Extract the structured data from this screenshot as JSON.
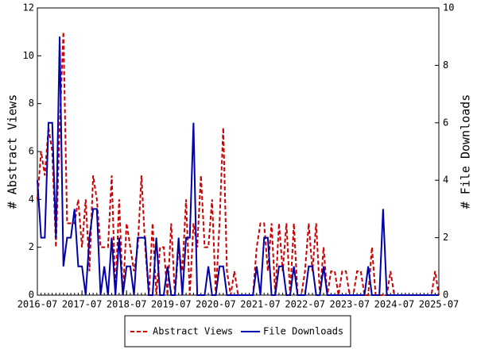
{
  "chart_data": {
    "type": "line",
    "x": [
      "2016-07",
      "2016-08",
      "2016-09",
      "2016-10",
      "2016-11",
      "2016-12",
      "2017-01",
      "2017-02",
      "2017-03",
      "2017-04",
      "2017-05",
      "2017-06",
      "2017-07",
      "2017-08",
      "2017-09",
      "2017-10",
      "2017-11",
      "2017-12",
      "2018-01",
      "2018-02",
      "2018-03",
      "2018-04",
      "2018-05",
      "2018-06",
      "2018-07",
      "2018-08",
      "2018-09",
      "2018-10",
      "2018-11",
      "2018-12",
      "2019-01",
      "2019-02",
      "2019-03",
      "2019-04",
      "2019-05",
      "2019-06",
      "2019-07",
      "2019-08",
      "2019-09",
      "2019-10",
      "2019-11",
      "2019-12",
      "2020-01",
      "2020-02",
      "2020-03",
      "2020-04",
      "2020-05",
      "2020-06",
      "2020-07",
      "2020-08",
      "2020-09",
      "2020-10",
      "2020-11",
      "2020-12",
      "2021-01",
      "2021-02",
      "2021-03",
      "2021-04",
      "2021-05",
      "2021-06",
      "2021-07",
      "2021-08",
      "2021-09",
      "2021-10",
      "2021-11",
      "2021-12",
      "2022-01",
      "2022-02",
      "2022-03",
      "2022-04",
      "2022-05",
      "2022-06",
      "2022-07",
      "2022-08",
      "2022-09",
      "2022-10",
      "2022-11",
      "2022-12",
      "2023-01",
      "2023-02",
      "2023-03",
      "2023-04",
      "2023-05",
      "2023-06",
      "2023-07",
      "2023-08",
      "2023-09",
      "2023-10",
      "2023-11",
      "2023-12",
      "2024-01",
      "2024-02",
      "2024-03",
      "2024-04",
      "2024-05",
      "2024-06",
      "2024-07",
      "2024-08",
      "2024-09",
      "2024-10",
      "2024-11",
      "2024-12",
      "2025-01",
      "2025-02",
      "2025-03",
      "2025-04",
      "2025-05",
      "2025-06",
      "2025-07"
    ],
    "series": [
      {
        "name": "Abstract Views",
        "color": "#cc0000",
        "values": [
          4,
          6,
          5,
          7,
          6,
          2,
          7,
          11,
          3,
          3,
          3,
          4,
          2,
          4,
          1,
          5,
          4,
          2,
          2,
          2,
          5,
          0,
          4,
          0,
          3,
          2,
          1,
          2,
          5,
          2,
          0,
          3,
          0,
          2,
          2,
          0,
          3,
          0,
          2,
          1,
          4,
          0,
          3,
          2,
          5,
          2,
          2,
          4,
          0,
          3,
          7,
          1,
          0,
          1,
          0,
          0,
          0,
          0,
          0,
          2,
          3,
          3,
          1,
          3,
          0,
          3,
          1,
          3,
          0,
          3,
          0,
          0,
          1,
          3,
          1,
          3,
          0,
          2,
          0,
          1,
          1,
          0,
          1,
          1,
          0,
          0,
          1,
          1,
          0,
          0,
          2,
          0,
          0,
          0,
          0,
          1,
          0,
          0,
          0,
          0,
          0,
          0,
          0,
          0,
          0,
          0,
          0,
          1,
          0
        ]
      },
      {
        "name": "File Downloads",
        "color": "#0000aa",
        "axis": "y2",
        "values": [
          4,
          2,
          2,
          6,
          6,
          2,
          9,
          1,
          2,
          2,
          3,
          1,
          1,
          0,
          2,
          3,
          3,
          0,
          1,
          0,
          2,
          0,
          2,
          0,
          1,
          1,
          0,
          2,
          2,
          2,
          0,
          0,
          2,
          0,
          0,
          1,
          0,
          0,
          2,
          0,
          2,
          2,
          6,
          0,
          0,
          0,
          1,
          0,
          0,
          1,
          1,
          0,
          0,
          0,
          0,
          0,
          0,
          0,
          0,
          1,
          0,
          2,
          2,
          0,
          0,
          1,
          1,
          0,
          0,
          1,
          0,
          0,
          0,
          1,
          1,
          0,
          0,
          1,
          0,
          0,
          0,
          0,
          0,
          0,
          0,
          0,
          0,
          0,
          0,
          1,
          0,
          0,
          0,
          3,
          0,
          0,
          0,
          0,
          0,
          0,
          0,
          0,
          0,
          0,
          0,
          0,
          0,
          0,
          0
        ]
      }
    ],
    "xticks": [
      "2016-07",
      "2017-07",
      "2018-07",
      "2019-07",
      "2020-07",
      "2021-07",
      "2022-07",
      "2023-07",
      "2024-07",
      "2025-07"
    ],
    "ylabel": "# Abstract Views",
    "y2label": "# File Downloads",
    "ylim": [
      0,
      12
    ],
    "yticks": [
      0,
      2,
      4,
      6,
      8,
      10,
      12
    ],
    "y2lim": [
      0,
      10
    ],
    "y2ticks": [
      0,
      2,
      4,
      6,
      8,
      10
    ],
    "legend": "bottom"
  }
}
